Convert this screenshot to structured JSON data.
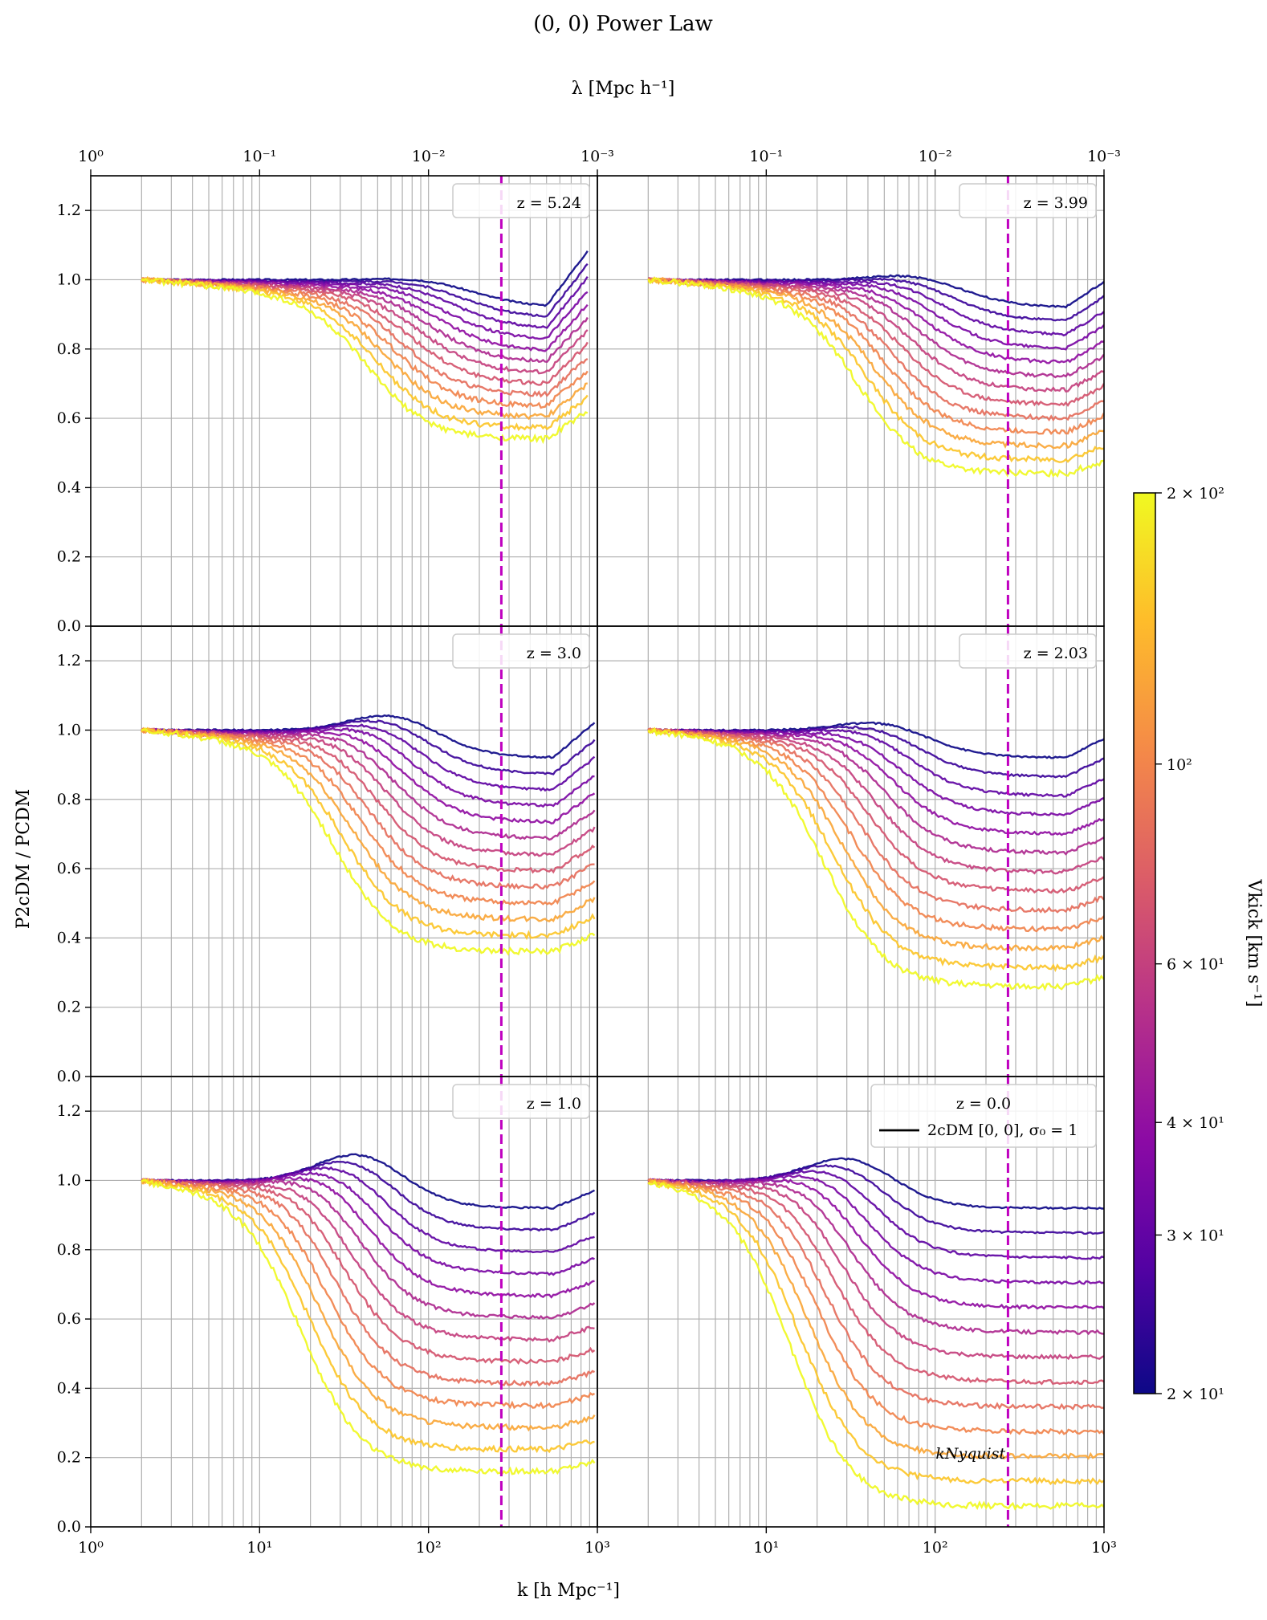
{
  "chart_data": {
    "type": "line",
    "title": "(0, 0) Power Law",
    "top_axis_label": "λ [Mpc h⁻¹]",
    "top_ticks": [
      "10⁰",
      "10⁻¹",
      "10⁻²",
      "10⁻³",
      "10⁻¹",
      "10⁻²",
      "10⁻³"
    ],
    "xlabel": "k [h Mpc⁻¹]",
    "ylabel": "P2cDM / PCDM",
    "xscale": "log",
    "xlim": [
      1,
      1000
    ],
    "ylim": [
      0,
      1.3
    ],
    "x_ticks": [
      "10⁰",
      "10¹",
      "10²",
      "10³",
      "10¹",
      "10²",
      "10³"
    ],
    "y_ticks": [
      "0.0",
      "0.2",
      "0.4",
      "0.6",
      "0.8",
      "1.0",
      "1.2"
    ],
    "k_nyquist": 270,
    "k_nyquist_label": "kNyquist",
    "colorbar": {
      "label": "Vkick [km s⁻¹]",
      "scale": "log",
      "range": [
        20,
        200
      ],
      "ticks": [
        "2 × 10¹",
        "3 × 10¹",
        "4 × 10¹",
        "6 × 10¹",
        "10²",
        "2 × 10²"
      ],
      "colormap": [
        "#0d0887",
        "#5302a3",
        "#8b0aa5",
        "#b83289",
        "#db5c68",
        "#f48849",
        "#febd2a",
        "#f0f921"
      ]
    },
    "legend_entry": "2cDM [0, 0], σ₀ = 1",
    "legend_line_color": "#000000",
    "x_grid": [
      2,
      3,
      4,
      5,
      6,
      7,
      8,
      9,
      10,
      20,
      30,
      40,
      50,
      60,
      70,
      80,
      90,
      100,
      200,
      300,
      400,
      500,
      600,
      700,
      800,
      900,
      1000
    ],
    "panels": [
      {
        "z_label": "z = 5.24",
        "onset": 1.6,
        "drop": 1.65,
        "min": 0.54,
        "kmin": 500,
        "uptick": 0.16,
        "bump": 0.01
      },
      {
        "z_label": "z = 3.99",
        "onset": 1.45,
        "drop": 1.55,
        "min": 0.44,
        "kmin": 600,
        "uptick": 0.08,
        "bump": 0.02
      },
      {
        "z_label": "z = 3.0",
        "onset": 1.3,
        "drop": 1.45,
        "min": 0.36,
        "kmin": 550,
        "uptick": 0.1,
        "bump": 0.05
      },
      {
        "z_label": "z = 2.03",
        "onset": 1.2,
        "drop": 1.35,
        "min": 0.26,
        "kmin": 600,
        "uptick": 0.06,
        "bump": 0.03
      },
      {
        "z_label": "z = 1.0",
        "onset": 1.05,
        "drop": 1.25,
        "min": 0.16,
        "kmin": 550,
        "uptick": 0.05,
        "bump": 0.08
      },
      {
        "z_label": "z = 0.0",
        "onset": 0.95,
        "drop": 1.15,
        "min": 0.06,
        "kmin": 900,
        "uptick": 0.0,
        "bump": 0.07
      }
    ],
    "series_vkick": [
      20,
      25,
      30,
      35,
      40,
      50,
      60,
      70,
      85,
      100,
      125,
      150,
      200
    ]
  }
}
